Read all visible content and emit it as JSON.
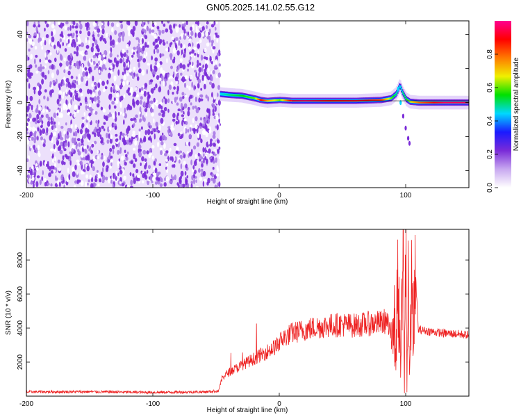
{
  "title": "GN05.2025.141.02.55.G12",
  "chart_data": [
    {
      "type": "heatmap",
      "xlabel": "Height of straight line (km)",
      "ylabel": "Frequency (Hz)",
      "xlim": [
        -200,
        150
      ],
      "ylim": [
        -50,
        48
      ],
      "xticks": [
        -200,
        -100,
        0,
        100
      ],
      "yticks": [
        -40,
        -20,
        0,
        20,
        40
      ],
      "colorbar": {
        "label": "Normalized spectral amplitude",
        "range": [
          0,
          1
        ],
        "ticks": [
          "0.0",
          "0.2",
          "0.4",
          "0.6",
          "0.8"
        ],
        "colors": [
          "#ffffff",
          "#c8a8f0",
          "#7a2bd8",
          "#1a1aff",
          "#00d8ff",
          "#00e000",
          "#f0f000",
          "#ff7a00",
          "#ff0000",
          "#ff0090"
        ]
      },
      "noise_region_x": [
        -200,
        -47
      ],
      "signal_track": {
        "x": [
          -47,
          -40,
          -30,
          -20,
          -15,
          -10,
          0,
          10,
          20,
          40,
          60,
          80,
          88,
          92,
          95,
          97,
          100,
          103,
          110,
          130,
          150
        ],
        "freq": [
          5,
          4.5,
          4,
          2.5,
          1.5,
          1,
          1.5,
          1,
          1,
          1,
          1,
          1.5,
          2.5,
          5,
          10,
          6,
          2,
          0.5,
          0,
          0,
          0
        ],
        "amplitude": [
          0.45,
          0.5,
          0.55,
          0.6,
          0.9,
          0.75,
          0.6,
          0.95,
          0.98,
          0.9,
          0.92,
          0.85,
          0.6,
          0.5,
          0.45,
          0.5,
          0.55,
          0.65,
          0.8,
          0.95,
          0.95
        ]
      }
    },
    {
      "type": "line",
      "xlabel": "Height of straight line (km)",
      "ylabel": "SNR (10 * v/v)",
      "xlim": [
        -200,
        150
      ],
      "ylim": [
        0,
        9800
      ],
      "xticks": [
        -200,
        -100,
        0,
        100
      ],
      "yticks": [
        2000,
        4000,
        6000,
        8000
      ],
      "color": "#ee2222",
      "series": [
        {
          "x": [
            -200,
            -150,
            -100,
            -60,
            -48,
            -45,
            -40,
            -30,
            -20,
            -10,
            -1,
            0,
            5,
            10,
            20,
            30,
            40,
            50,
            60,
            70,
            80,
            85,
            88,
            90,
            92,
            94,
            96,
            98,
            99,
            100,
            101,
            102,
            103,
            104,
            105,
            106,
            108,
            110,
            120,
            130,
            140,
            150
          ],
          "y": [
            250,
            260,
            220,
            250,
            300,
            1100,
            1400,
            1800,
            2200,
            2600,
            3000,
            3200,
            3500,
            3700,
            3900,
            4050,
            4150,
            4200,
            4150,
            4250,
            4300,
            4450,
            3500,
            6000,
            2500,
            7000,
            1500,
            8200,
            300,
            9600,
            500,
            7800,
            1000,
            4200,
            6500,
            3800,
            6800,
            3900,
            3800,
            3700,
            3650,
            3600
          ]
        }
      ]
    }
  ]
}
